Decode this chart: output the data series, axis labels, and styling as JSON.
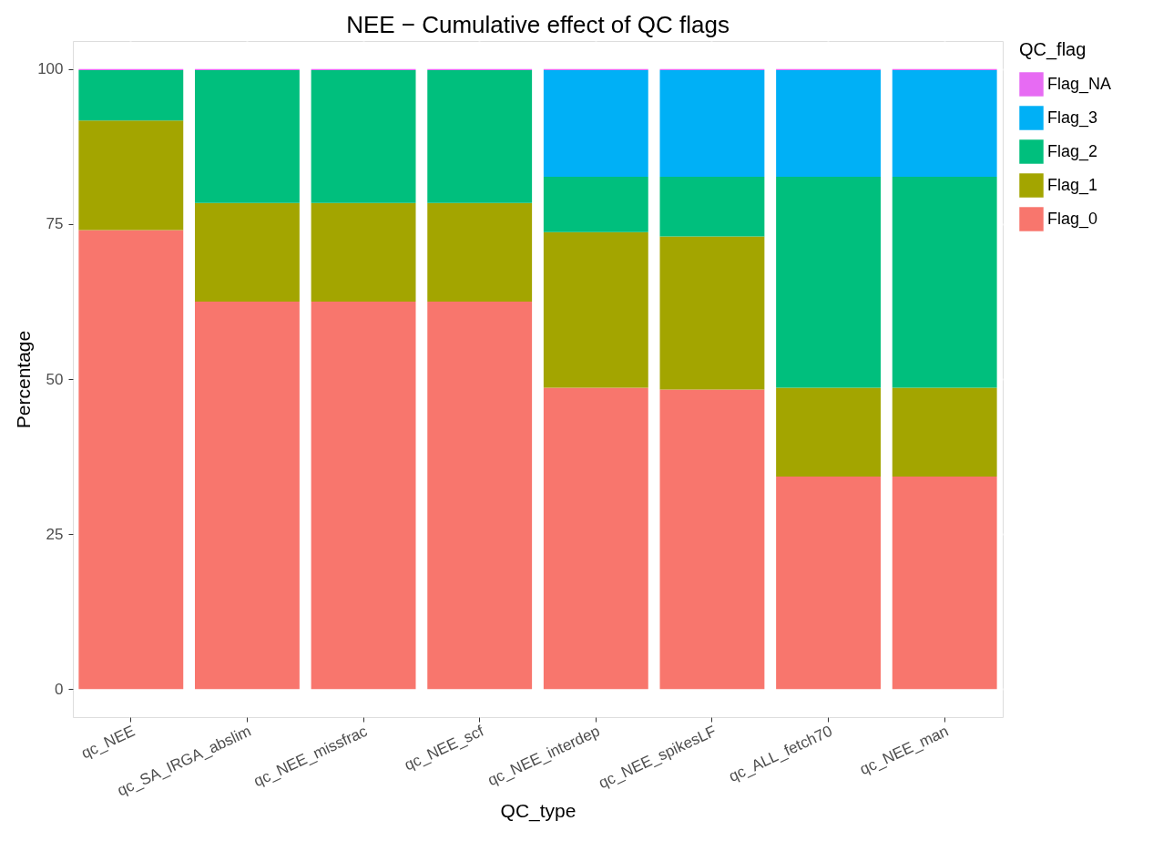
{
  "chart_data": {
    "type": "bar",
    "stacked": true,
    "title": "NEE − Cumulative effect of QC flags",
    "xlabel": "QC_type",
    "ylabel": "Percentage",
    "legend_title": "QC_flag",
    "legend": "right",
    "grid": true,
    "categories": [
      "qc_NEE",
      "qc_SA_IRGA_abslim",
      "qc_NEE_missfrac",
      "qc_NEE_scf",
      "qc_NEE_interdep",
      "qc_NEE_spikesLF",
      "qc_ALL_fetch70",
      "qc_NEE_man"
    ],
    "ylim": [
      -4.5,
      104.5
    ],
    "yticks": [
      0,
      25,
      50,
      75,
      100
    ],
    "series": [
      {
        "name": "Flag_0",
        "color": "#f8766d",
        "values": [
          74.0,
          62.5,
          62.5,
          62.5,
          48.6,
          48.3,
          34.3,
          34.3
        ]
      },
      {
        "name": "Flag_1",
        "color": "#a3a500",
        "values": [
          17.7,
          15.9,
          15.9,
          15.9,
          25.1,
          24.7,
          14.3,
          14.3
        ]
      },
      {
        "name": "Flag_2",
        "color": "#00bf7d",
        "values": [
          8.1,
          21.4,
          21.4,
          21.4,
          8.9,
          9.6,
          34.0,
          34.0
        ]
      },
      {
        "name": "Flag_3",
        "color": "#00b0f6",
        "values": [
          0,
          0,
          0,
          0,
          17.2,
          17.2,
          17.2,
          17.2
        ]
      },
      {
        "name": "Flag_NA",
        "color": "#e76bf3",
        "values": [
          0.2,
          0.2,
          0.2,
          0.2,
          0.2,
          0.2,
          0.2,
          0.2
        ]
      }
    ]
  }
}
